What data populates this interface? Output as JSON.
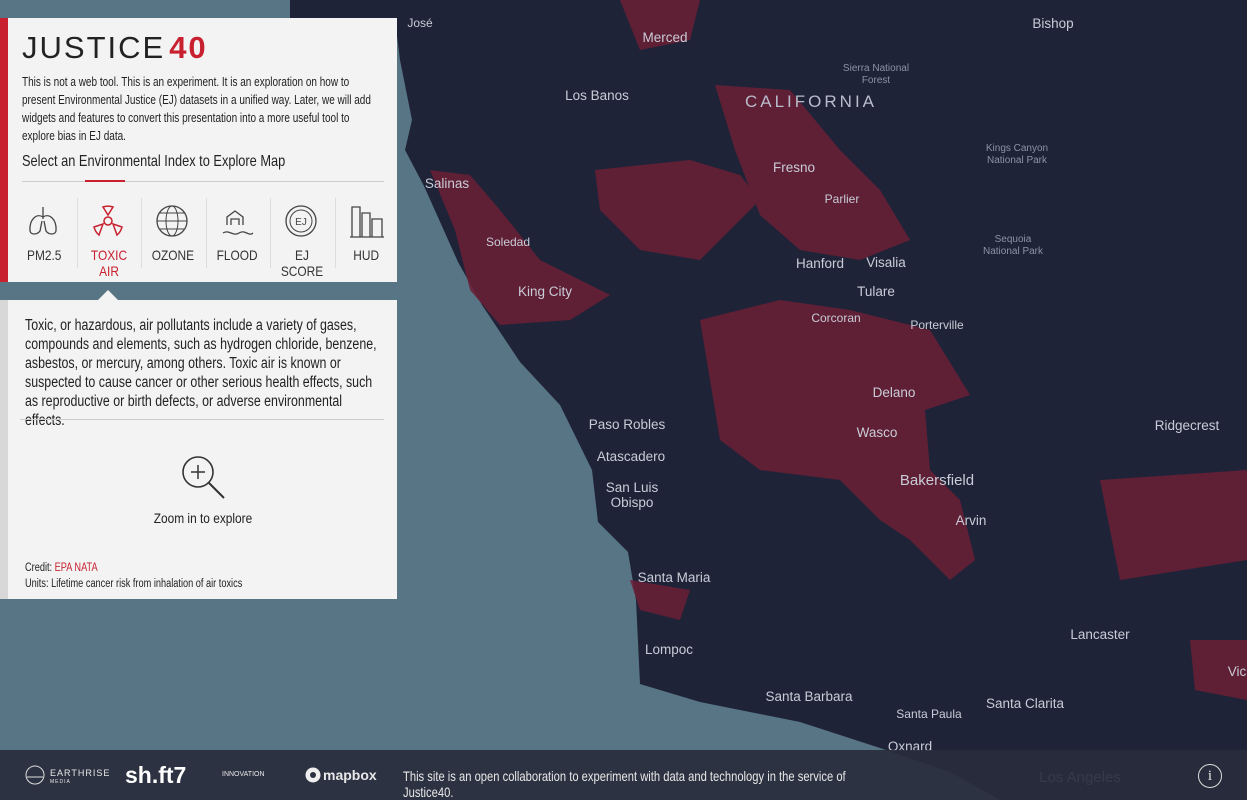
{
  "header": {
    "title": "JUSTICE",
    "title_accent": "40",
    "description": "This is not a web tool. This is an experiment. It is an exploration on how to present Environmental Justice (EJ) datasets in a unified way. Later, we will add widgets and features to convert this presentation into a more useful tool to explore bias in EJ data.",
    "select_heading": "Select an Environmental Index to Explore Map"
  },
  "tabs": [
    "PM2.5",
    "TOXIC AIR",
    "OZONE",
    "FLOOD",
    "EJ SCORE",
    "HUD"
  ],
  "info": {
    "text": "Toxic, or hazardous, air pollutants include a variety of gases, compounds and elements, such as hydrogen chloride, benzene, asbestos, or mercury, among others. Toxic air is known or suspected to cause cancer or other serious health effects, such as reproductive or birth defects, or adverse environmental effects.",
    "zoom": "Zoom in to explore",
    "credit_label": "Credit:",
    "credit_source": "EPA NATA",
    "units": "Units: Lifetime cancer risk from inhalation of air toxics"
  },
  "footer": {
    "logos": [
      "EARTHRISE",
      "MEDIA",
      "sh.ft7",
      "INNOVATION",
      "mapbox"
    ],
    "text": "This site is an open collaboration to experiment with data and technology in the service of Justice40.",
    "info_button": "i"
  },
  "map": {
    "region": "CALIFORNIA",
    "labels": [
      [
        "José"
      ],
      [
        "Merced"
      ],
      [
        "Los Banos"
      ],
      [
        "Sierra National",
        "Forest"
      ],
      [
        "Bishop"
      ],
      [
        "Kings Canyon",
        "National Park"
      ],
      [
        "Fresno"
      ],
      [
        "Salinas"
      ],
      [
        "Parlier"
      ],
      [
        "Soledad"
      ],
      [
        "Sequoia",
        "National Park"
      ],
      [
        "Hanford"
      ],
      [
        "Visalia"
      ],
      [
        "King City"
      ],
      [
        "Tulare"
      ],
      [
        "Corcoran"
      ],
      [
        "Porterville"
      ],
      [
        "Delano"
      ],
      [
        "Paso Robles"
      ],
      [
        "Ridgecrest"
      ],
      [
        "Wasco"
      ],
      [
        "Atascadero"
      ],
      [
        "Bakersfield"
      ],
      [
        "San Luis",
        "Obispo"
      ],
      [
        "Arvin"
      ],
      [
        "Santa Maria"
      ],
      [
        "Lancaster"
      ],
      [
        "Lompoc"
      ],
      [
        "Santa Barbara"
      ],
      [
        "Santa Clarita"
      ],
      [
        "Santa Paula"
      ],
      [
        "Oxnard"
      ],
      [
        "Los Angeles"
      ],
      [
        "Vic"
      ]
    ]
  }
}
